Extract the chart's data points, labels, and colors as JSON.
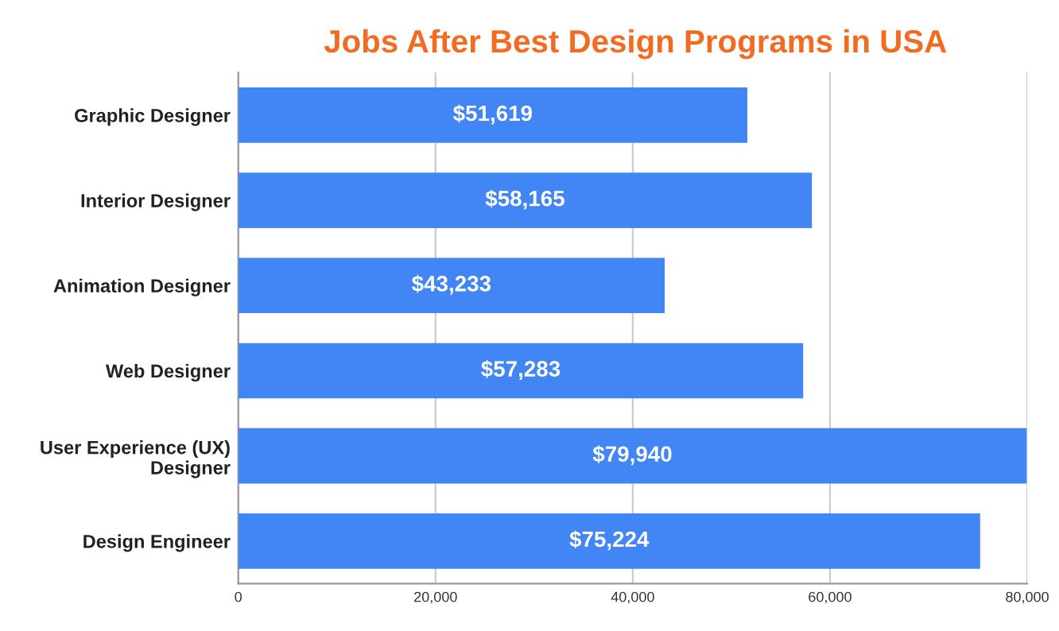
{
  "chart_data": {
    "type": "bar",
    "orientation": "horizontal",
    "title": "Jobs After Best Design Programs in USA",
    "categories": [
      "Graphic Designer",
      "Interior Designer",
      "Animation Designer",
      "Web Designer",
      "User Experience (UX)\nDesigner",
      "Design Engineer"
    ],
    "values": [
      51619,
      58165,
      43233,
      57283,
      79940,
      75224
    ],
    "value_labels": [
      "$51,619",
      "$58,165",
      "$43,233",
      "$57,283",
      "$79,940",
      "$75,224"
    ],
    "color": "#4285f4",
    "xlim": [
      0,
      80000
    ],
    "xticks": [
      0,
      {
        "value": 20000,
        "label": "20,000"
      },
      {
        "value": 40000,
        "label": "40,000"
      },
      {
        "value": 60000,
        "label": "60,000"
      },
      {
        "value": 80000,
        "label": "80,000"
      }
    ],
    "grid": "x"
  }
}
